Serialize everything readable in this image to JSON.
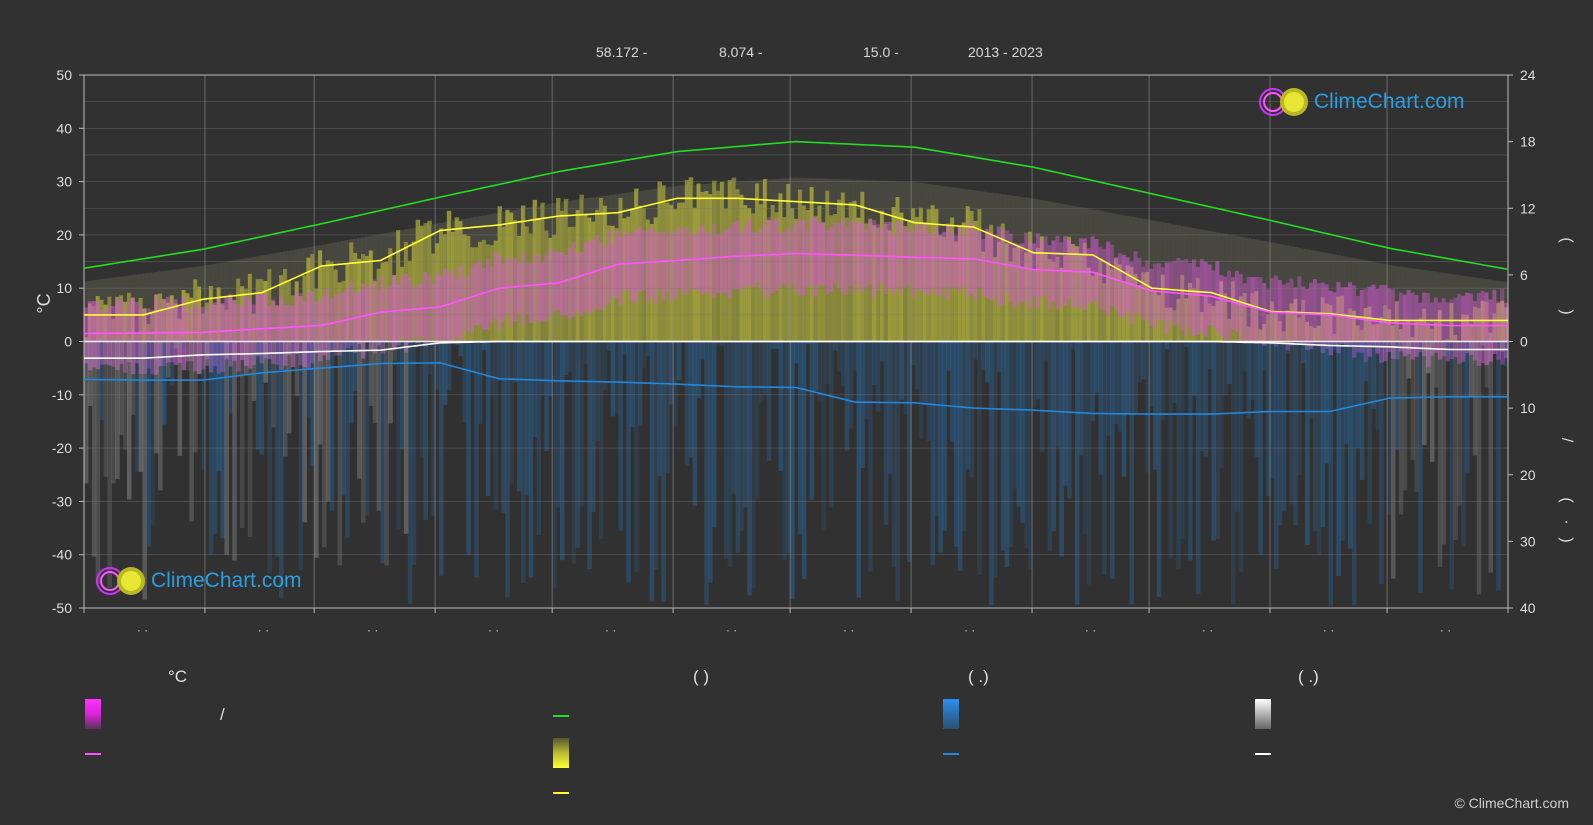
{
  "header": {
    "lat": "58.172 -",
    "lon": "8.074 -",
    "elev": "15.0 -",
    "years": "2013 - 2023"
  },
  "watermark_text": "ClimeChart.com",
  "copyright": "© ClimeChart.com",
  "legend": {
    "col1_head": "°C",
    "col1_text": "/",
    "col2_head": "(          )",
    "col3_head": "(   .)",
    "col4_head": "(   .)"
  },
  "colors": {
    "background": "#313131",
    "daylight": "#22dd22",
    "sunshine": "#ffff33",
    "temperature": "#ff55ff",
    "rain": "#2288dd",
    "snow": "#ffffff",
    "sunshine_fill": "#b3b33a",
    "temp_fill": "#d85ad8",
    "rain_fill": "#2a6da8",
    "snow_fill": "#9a9a9a",
    "logo_text": "#2a9fe0"
  },
  "chart_data": {
    "type": "line",
    "ylabel_left": "°C",
    "ylim_left": [
      -50,
      50
    ],
    "yticks_left": [
      "50",
      "40",
      "30",
      "20",
      "10",
      "0",
      "-10",
      "-20",
      "-30",
      "-40",
      "-50"
    ],
    "ylim_right_top": [
      0,
      24
    ],
    "yticks_right_top": [
      "24",
      "18",
      "12",
      "6",
      "0"
    ],
    "ylim_right_bottom": [
      0,
      40
    ],
    "yticks_right_bottom": [
      "10",
      "20",
      "30",
      "40"
    ],
    "right_labels": [
      "(",
      ")",
      "/",
      "(",
      "·",
      ")"
    ],
    "x_month_positions": 12,
    "x_tick_labels": [
      "· ·",
      "· ·",
      "· ·",
      "· ·",
      "· ·",
      "· ·",
      "· ·",
      "· ·",
      "· ·",
      "· ·",
      "· ·",
      "· ·"
    ],
    "grid": true,
    "series": [
      {
        "key": "daylight",
        "unit": "hours",
        "axis": "right_top",
        "x": [
          0,
          1,
          2,
          3,
          4,
          5,
          6,
          7,
          8,
          9,
          10,
          11,
          12
        ],
        "values": [
          6.6,
          8.3,
          10.6,
          13.0,
          15.3,
          17.1,
          18.0,
          17.5,
          15.7,
          13.3,
          10.9,
          8.4,
          6.5
        ]
      },
      {
        "key": "sunshine",
        "unit": "hours",
        "axis": "right_top",
        "x": [
          0,
          0.5,
          1.0,
          1.5,
          2.0,
          2.5,
          3.0,
          3.5,
          4.0,
          4.5,
          5.0,
          5.5,
          6.0,
          6.5,
          7.0,
          7.5,
          8.0,
          8.5,
          9.0,
          9.5,
          10.0,
          10.5,
          11.0,
          11.5,
          12.0
        ],
        "values": [
          2.4,
          2.4,
          3.8,
          4.4,
          6.8,
          7.3,
          10.0,
          10.5,
          11.3,
          11.6,
          12.9,
          12.9,
          12.6,
          12.3,
          10.7,
          10.3,
          8.0,
          7.8,
          4.8,
          4.4,
          2.7,
          2.5,
          1.9,
          1.9,
          1.9
        ]
      },
      {
        "key": "temperature_mean",
        "unit": "°C",
        "axis": "left",
        "x": [
          0,
          0.5,
          1.0,
          1.5,
          2.0,
          2.5,
          3.0,
          3.5,
          4.0,
          4.5,
          5.0,
          5.5,
          6.0,
          6.5,
          7.0,
          7.5,
          8.0,
          8.5,
          9.0,
          9.5,
          10.0,
          10.5,
          11.0,
          11.5,
          12.0
        ],
        "values": [
          1.5,
          1.6,
          1.7,
          2.4,
          3.0,
          5.5,
          6.5,
          10.0,
          11.0,
          14.5,
          15.2,
          16.0,
          16.5,
          16.2,
          15.8,
          15.5,
          13.5,
          13.0,
          9.5,
          8.5,
          5.5,
          5.0,
          3.5,
          3.0,
          3.0
        ]
      },
      {
        "key": "rain_mean",
        "unit": "mm",
        "axis": "right_bottom",
        "x": [
          0,
          0.5,
          1.0,
          1.5,
          2.0,
          2.5,
          3.0,
          3.5,
          4.0,
          4.5,
          5.0,
          5.5,
          6.0,
          6.5,
          7.0,
          7.5,
          8.0,
          8.5,
          9.0,
          9.5,
          10.0,
          10.5,
          11.0,
          11.5,
          12.0
        ],
        "values": [
          5.7,
          5.8,
          5.8,
          4.7,
          4.0,
          3.3,
          3.2,
          5.6,
          5.9,
          6.1,
          6.4,
          6.8,
          6.9,
          9.1,
          9.2,
          10.0,
          10.3,
          10.8,
          10.9,
          10.9,
          10.5,
          10.5,
          8.5,
          8.3,
          8.3
        ]
      },
      {
        "key": "snow_mean",
        "unit": "mm",
        "axis": "right_bottom",
        "x": [
          0,
          0.5,
          1.0,
          1.5,
          2.0,
          2.5,
          3.0,
          3.5,
          4.0,
          4.5,
          5.0,
          5.5,
          6.0,
          6.5,
          7.0,
          7.5,
          8.0,
          8.5,
          9.0,
          9.5,
          10.0,
          10.5,
          11.0,
          11.5,
          12.0
        ],
        "values": [
          2.5,
          2.5,
          2.0,
          1.8,
          1.5,
          1.3,
          0.2,
          0,
          0,
          0,
          0,
          0,
          0,
          0,
          0,
          0,
          0,
          0,
          0,
          0,
          0.2,
          0.6,
          0.8,
          1.2,
          1.2
        ]
      }
    ]
  }
}
